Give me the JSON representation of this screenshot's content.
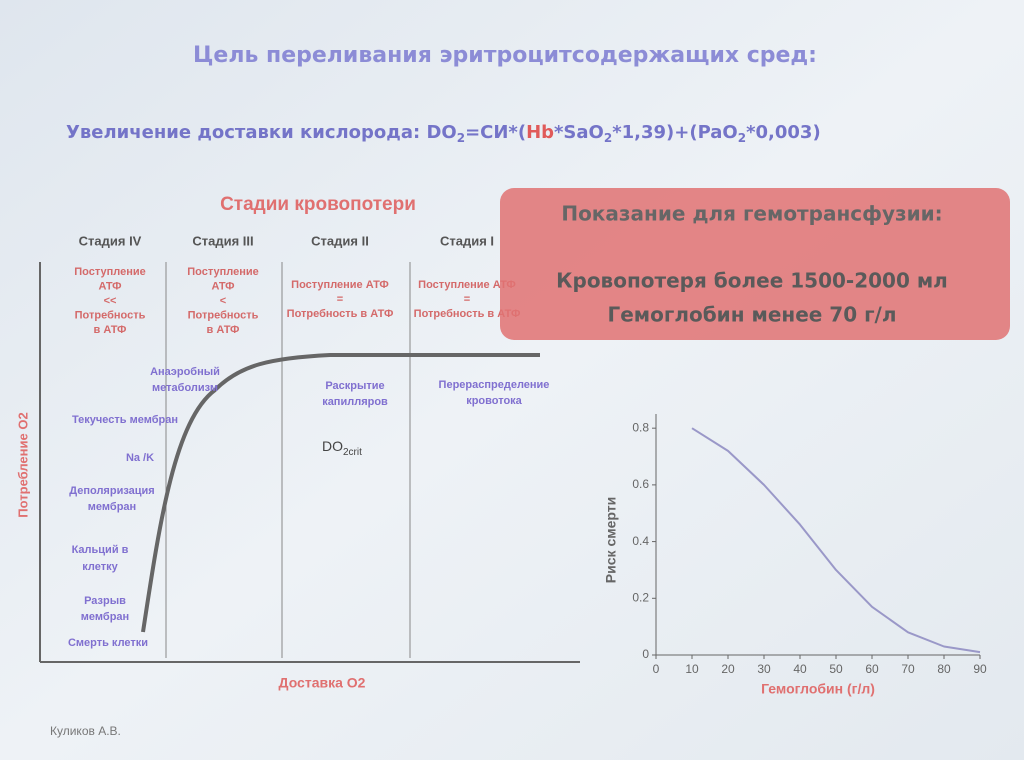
{
  "title": "Цель переливания эритроцитсодержащих сред:",
  "formula": [
    "Увеличение доставки кислорода: DO",
    "2",
    "=СИ*(",
    "Hb",
    "*SaO",
    "2",
    "*1,39)+(PaO",
    "2",
    "*0,003)"
  ],
  "diagram": {
    "title": "Стадии кровопотери",
    "stages": [
      {
        "name": "Стадия IV",
        "lines": [
          "Поступление",
          "АТФ",
          "<<",
          "Потребность",
          "в АТФ"
        ]
      },
      {
        "name": "Стадия III",
        "lines": [
          "Поступление",
          "АТФ",
          "<",
          "Потребность",
          "в АТФ"
        ]
      },
      {
        "name": "Стадия II",
        "lines": [
          "Поступление АТФ",
          "=",
          "Потребность в АТФ"
        ]
      },
      {
        "name": "Стадия I",
        "lines": [
          "Поступление АТФ",
          "=",
          "Потребность в АТФ"
        ]
      }
    ],
    "left_labels": [
      [
        "Анаэробный",
        "метаболизм"
      ],
      [
        "Текучесть мембран"
      ],
      [
        "Na /K"
      ],
      [
        "Деполяризация",
        "мембран"
      ],
      [
        "Кальций в",
        "клетку"
      ],
      [
        "Разрыв",
        "мембран"
      ],
      [
        "Смерть клетки"
      ]
    ],
    "mid_label": [
      "Раскрытие",
      "капилляров"
    ],
    "right_label": [
      "Перераспределение",
      "кровотока"
    ],
    "do_crit": [
      "DO",
      "2crit"
    ],
    "y_label": "Потребление О2",
    "x_label": "Доставка О2"
  },
  "callout": {
    "title": "Показание для гемотрансфузии:",
    "lines": [
      "Кровопотеря более 1500-2000 мл",
      "Гемоглобин менее 70 г/л"
    ]
  },
  "chart_data": {
    "type": "line",
    "x": [
      10,
      20,
      30,
      40,
      50,
      60,
      70,
      80,
      90
    ],
    "values": [
      0.8,
      0.72,
      0.6,
      0.46,
      0.3,
      0.17,
      0.08,
      0.03,
      0.01
    ],
    "color": "#9a98c8",
    "xlim": [
      0,
      90
    ],
    "xticks": [
      0,
      10,
      20,
      30,
      40,
      50,
      60,
      70,
      80,
      90
    ],
    "ylim": [
      0,
      0.85
    ],
    "yticks": [
      0,
      0.2,
      0.4,
      0.6,
      0.8
    ],
    "xlabel": "Гемоглобин (г/л)",
    "ylabel": "Риск смерти"
  },
  "footer": "Куликов А.В."
}
